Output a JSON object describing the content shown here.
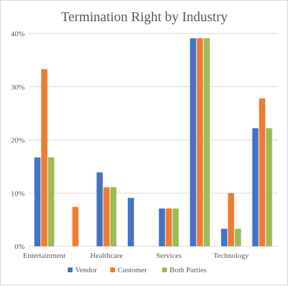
{
  "chart_data": {
    "type": "bar",
    "title": "Termination Right by Industry",
    "xlabel": "",
    "ylabel": "",
    "ylim": [
      0,
      40
    ],
    "yticks": [
      0,
      10,
      20,
      30,
      40
    ],
    "ytick_labels": [
      "0%",
      "10%",
      "20%",
      "30%",
      "40%"
    ],
    "grid": true,
    "legend_position": "bottom",
    "categories": [
      "Entertainment",
      "",
      "Healthcare",
      "",
      "Services",
      "",
      "Technology",
      ""
    ],
    "series": [
      {
        "name": "Vendor",
        "color": "#4472c4",
        "values": [
          16.7,
          0,
          13.9,
          9.1,
          7.1,
          39.1,
          3.3,
          22.2
        ]
      },
      {
        "name": "Customer",
        "color": "#ed7d31",
        "values": [
          33.3,
          7.4,
          11.1,
          0,
          7.1,
          39.1,
          10.0,
          27.8
        ]
      },
      {
        "name": "Both Parties",
        "color": "#9bbb59",
        "values": [
          16.7,
          0,
          11.1,
          0,
          7.1,
          39.1,
          3.3,
          22.2
        ]
      }
    ]
  }
}
